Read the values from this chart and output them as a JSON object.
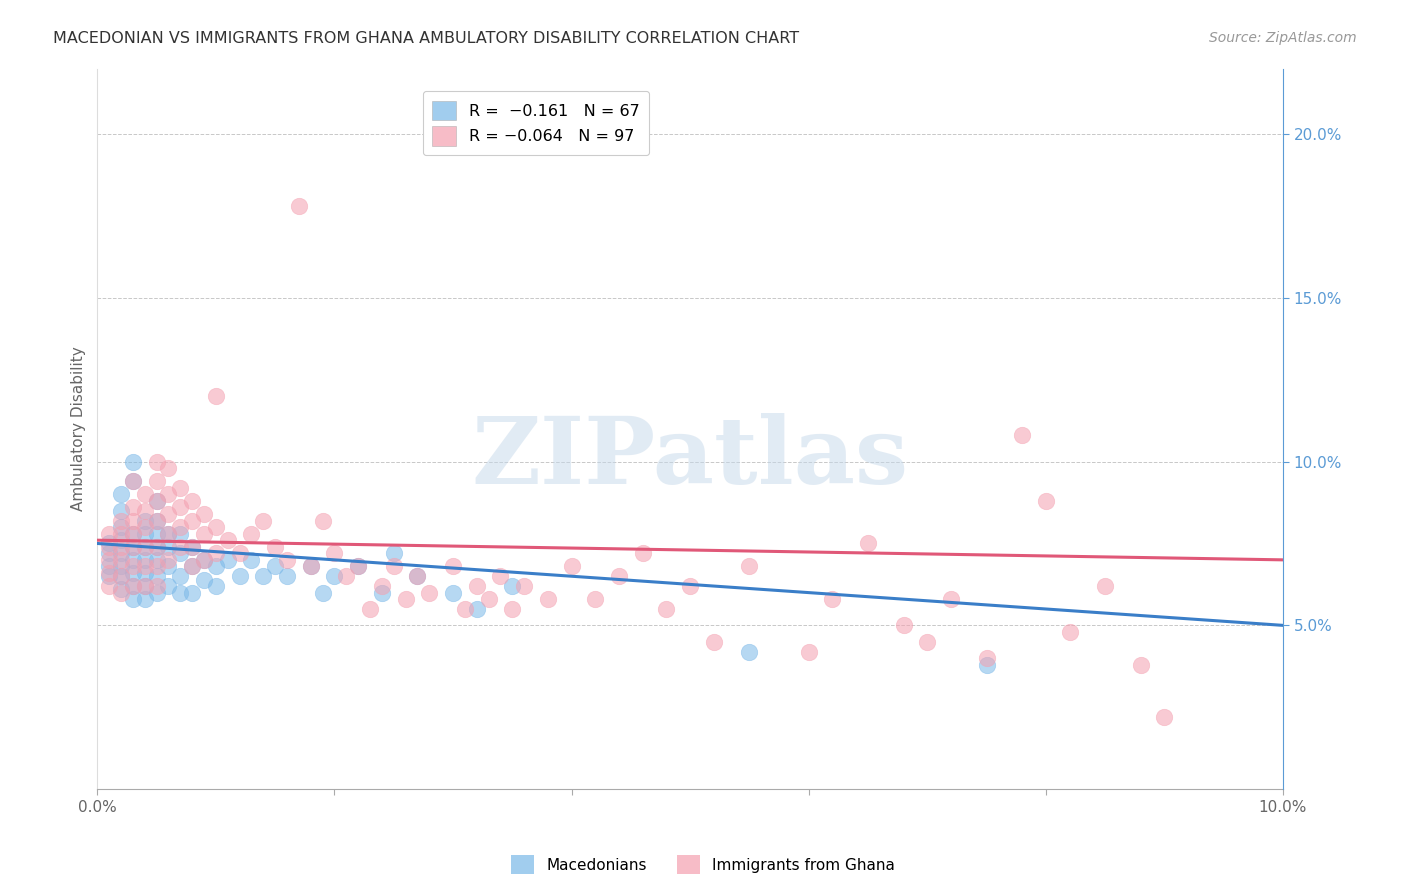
{
  "title": "MACEDONIAN VS IMMIGRANTS FROM GHANA AMBULATORY DISABILITY CORRELATION CHART",
  "source": "Source: ZipAtlas.com",
  "ylabel": "Ambulatory Disability",
  "xlim": [
    0.0,
    0.1
  ],
  "ylim": [
    0.0,
    0.22
  ],
  "x_ticks": [
    0.0,
    0.02,
    0.04,
    0.06,
    0.08,
    0.1
  ],
  "x_tick_labels": [
    "0.0%",
    "",
    "",
    "",
    "",
    "10.0%"
  ],
  "y_ticks_right": [
    0.05,
    0.1,
    0.15,
    0.2
  ],
  "y_tick_labels_right": [
    "5.0%",
    "10.0%",
    "15.0%",
    "20.0%"
  ],
  "blue_color": "#7ab8e8",
  "pink_color": "#f4a0b0",
  "blue_line_color": "#3a7ec8",
  "pink_line_color": "#e05878",
  "label1": "Macedonians",
  "label2": "Immigrants from Ghana",
  "watermark": "ZIPatlas",
  "background_color": "#ffffff",
  "grid_color": "#c8c8c8",
  "title_color": "#333333",
  "source_color": "#999999",
  "right_axis_color": "#5b9bd5",
  "blue_scatter": [
    [
      0.001,
      0.075
    ],
    [
      0.001,
      0.072
    ],
    [
      0.001,
      0.068
    ],
    [
      0.001,
      0.065
    ],
    [
      0.002,
      0.08
    ],
    [
      0.002,
      0.076
    ],
    [
      0.002,
      0.072
    ],
    [
      0.002,
      0.068
    ],
    [
      0.002,
      0.065
    ],
    [
      0.002,
      0.061
    ],
    [
      0.002,
      0.09
    ],
    [
      0.002,
      0.085
    ],
    [
      0.003,
      0.078
    ],
    [
      0.003,
      0.074
    ],
    [
      0.003,
      0.07
    ],
    [
      0.003,
      0.066
    ],
    [
      0.003,
      0.062
    ],
    [
      0.003,
      0.058
    ],
    [
      0.003,
      0.094
    ],
    [
      0.003,
      0.1
    ],
    [
      0.004,
      0.082
    ],
    [
      0.004,
      0.078
    ],
    [
      0.004,
      0.074
    ],
    [
      0.004,
      0.07
    ],
    [
      0.004,
      0.066
    ],
    [
      0.004,
      0.062
    ],
    [
      0.004,
      0.058
    ],
    [
      0.005,
      0.088
    ],
    [
      0.005,
      0.082
    ],
    [
      0.005,
      0.078
    ],
    [
      0.005,
      0.074
    ],
    [
      0.005,
      0.07
    ],
    [
      0.005,
      0.065
    ],
    [
      0.005,
      0.06
    ],
    [
      0.006,
      0.078
    ],
    [
      0.006,
      0.074
    ],
    [
      0.006,
      0.068
    ],
    [
      0.006,
      0.062
    ],
    [
      0.007,
      0.078
    ],
    [
      0.007,
      0.072
    ],
    [
      0.007,
      0.065
    ],
    [
      0.007,
      0.06
    ],
    [
      0.008,
      0.074
    ],
    [
      0.008,
      0.068
    ],
    [
      0.008,
      0.06
    ],
    [
      0.009,
      0.07
    ],
    [
      0.009,
      0.064
    ],
    [
      0.01,
      0.068
    ],
    [
      0.01,
      0.062
    ],
    [
      0.011,
      0.07
    ],
    [
      0.012,
      0.065
    ],
    [
      0.013,
      0.07
    ],
    [
      0.014,
      0.065
    ],
    [
      0.015,
      0.068
    ],
    [
      0.016,
      0.065
    ],
    [
      0.018,
      0.068
    ],
    [
      0.019,
      0.06
    ],
    [
      0.02,
      0.065
    ],
    [
      0.022,
      0.068
    ],
    [
      0.024,
      0.06
    ],
    [
      0.025,
      0.072
    ],
    [
      0.027,
      0.065
    ],
    [
      0.03,
      0.06
    ],
    [
      0.032,
      0.055
    ],
    [
      0.035,
      0.062
    ],
    [
      0.055,
      0.042
    ],
    [
      0.075,
      0.038
    ]
  ],
  "pink_scatter": [
    [
      0.001,
      0.078
    ],
    [
      0.001,
      0.074
    ],
    [
      0.001,
      0.07
    ],
    [
      0.001,
      0.066
    ],
    [
      0.001,
      0.062
    ],
    [
      0.002,
      0.082
    ],
    [
      0.002,
      0.078
    ],
    [
      0.002,
      0.074
    ],
    [
      0.002,
      0.07
    ],
    [
      0.002,
      0.065
    ],
    [
      0.002,
      0.06
    ],
    [
      0.003,
      0.086
    ],
    [
      0.003,
      0.082
    ],
    [
      0.003,
      0.078
    ],
    [
      0.003,
      0.074
    ],
    [
      0.003,
      0.068
    ],
    [
      0.003,
      0.062
    ],
    [
      0.003,
      0.094
    ],
    [
      0.004,
      0.09
    ],
    [
      0.004,
      0.085
    ],
    [
      0.004,
      0.08
    ],
    [
      0.004,
      0.074
    ],
    [
      0.004,
      0.068
    ],
    [
      0.004,
      0.062
    ],
    [
      0.005,
      0.1
    ],
    [
      0.005,
      0.094
    ],
    [
      0.005,
      0.088
    ],
    [
      0.005,
      0.082
    ],
    [
      0.005,
      0.074
    ],
    [
      0.005,
      0.068
    ],
    [
      0.005,
      0.062
    ],
    [
      0.006,
      0.098
    ],
    [
      0.006,
      0.09
    ],
    [
      0.006,
      0.084
    ],
    [
      0.006,
      0.078
    ],
    [
      0.006,
      0.07
    ],
    [
      0.007,
      0.092
    ],
    [
      0.007,
      0.086
    ],
    [
      0.007,
      0.08
    ],
    [
      0.007,
      0.074
    ],
    [
      0.008,
      0.088
    ],
    [
      0.008,
      0.082
    ],
    [
      0.008,
      0.074
    ],
    [
      0.008,
      0.068
    ],
    [
      0.009,
      0.084
    ],
    [
      0.009,
      0.078
    ],
    [
      0.009,
      0.07
    ],
    [
      0.01,
      0.12
    ],
    [
      0.01,
      0.08
    ],
    [
      0.01,
      0.072
    ],
    [
      0.011,
      0.076
    ],
    [
      0.012,
      0.072
    ],
    [
      0.013,
      0.078
    ],
    [
      0.014,
      0.082
    ],
    [
      0.015,
      0.074
    ],
    [
      0.016,
      0.07
    ],
    [
      0.017,
      0.178
    ],
    [
      0.018,
      0.068
    ],
    [
      0.019,
      0.082
    ],
    [
      0.02,
      0.072
    ],
    [
      0.021,
      0.065
    ],
    [
      0.022,
      0.068
    ],
    [
      0.023,
      0.055
    ],
    [
      0.024,
      0.062
    ],
    [
      0.025,
      0.068
    ],
    [
      0.026,
      0.058
    ],
    [
      0.027,
      0.065
    ],
    [
      0.028,
      0.06
    ],
    [
      0.03,
      0.068
    ],
    [
      0.031,
      0.055
    ],
    [
      0.032,
      0.062
    ],
    [
      0.033,
      0.058
    ],
    [
      0.034,
      0.065
    ],
    [
      0.035,
      0.055
    ],
    [
      0.036,
      0.062
    ],
    [
      0.038,
      0.058
    ],
    [
      0.04,
      0.068
    ],
    [
      0.042,
      0.058
    ],
    [
      0.044,
      0.065
    ],
    [
      0.046,
      0.072
    ],
    [
      0.048,
      0.055
    ],
    [
      0.05,
      0.062
    ],
    [
      0.052,
      0.045
    ],
    [
      0.055,
      0.068
    ],
    [
      0.06,
      0.042
    ],
    [
      0.062,
      0.058
    ],
    [
      0.065,
      0.075
    ],
    [
      0.068,
      0.05
    ],
    [
      0.07,
      0.045
    ],
    [
      0.072,
      0.058
    ],
    [
      0.075,
      0.04
    ],
    [
      0.078,
      0.108
    ],
    [
      0.08,
      0.088
    ],
    [
      0.082,
      0.048
    ],
    [
      0.085,
      0.062
    ],
    [
      0.088,
      0.038
    ],
    [
      0.09,
      0.022
    ]
  ]
}
